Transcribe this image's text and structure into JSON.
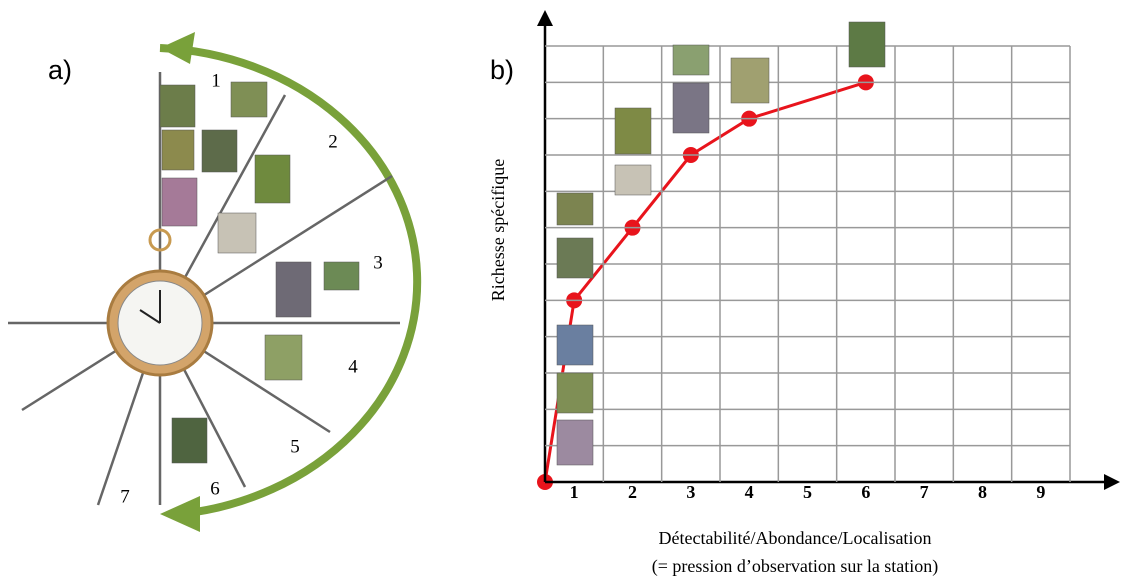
{
  "panel_a": {
    "label": "a)",
    "sectors": [
      "1",
      "2",
      "3",
      "4",
      "5",
      "6",
      "7"
    ]
  },
  "chart_data": {
    "type": "line",
    "label": "b)",
    "y_label": "Richesse spécifique",
    "x_label": [
      "Détectabilité/Abondance/Localisation",
      "(= pression d’observation sur la station)"
    ],
    "x": [
      1,
      2,
      3,
      4,
      6
    ],
    "series": [
      {
        "color": "#e8141c",
        "values": [
          5,
          7,
          9,
          10,
          11
        ]
      }
    ],
    "xlim": [
      0.5,
      9.5
    ],
    "xticks": [
      1,
      2,
      3,
      4,
      5,
      6,
      7,
      8,
      9
    ],
    "ylim": [
      0,
      12
    ],
    "grid": true
  }
}
